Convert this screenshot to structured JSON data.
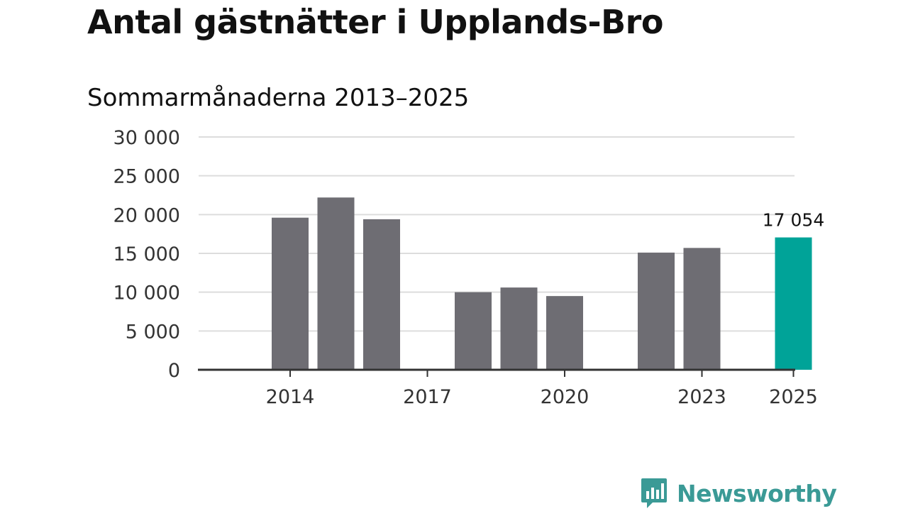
{
  "header": {
    "title": "Antal gästnätter i Upplands-Bro",
    "subtitle": "Sommarmånaderna 2013–2025"
  },
  "chart_data": {
    "type": "bar",
    "categories": [
      "2013",
      "2014",
      "2015",
      "2016",
      "2017",
      "2018",
      "2019",
      "2020",
      "2021",
      "2022",
      "2023",
      "2024",
      "2025"
    ],
    "values": [
      null,
      19600,
      22200,
      19400,
      null,
      10000,
      10600,
      9500,
      null,
      15100,
      15700,
      null,
      17054
    ],
    "x_tick_labels": [
      "2014",
      "2017",
      "2020",
      "2023",
      "2025"
    ],
    "y_ticks": [
      0,
      5000,
      10000,
      15000,
      20000,
      25000,
      30000
    ],
    "y_tick_labels": [
      "0",
      "5 000",
      "10 000",
      "15 000",
      "20 000",
      "25 000",
      "30 000"
    ],
    "ylim": [
      0,
      30000
    ],
    "highlight_category": "2025",
    "data_labels": [
      {
        "category": "2025",
        "text": "17 054"
      }
    ],
    "grid": true,
    "colors": {
      "bar": "#6e6d73",
      "highlight": "#00a398",
      "grid": "#dddddd",
      "axis": "#333333"
    }
  },
  "footer": {
    "logo_text": "Newsworthy",
    "logo_icon": "bar-chart-speech-bubble-icon",
    "logo_color": "#3b9a96"
  }
}
